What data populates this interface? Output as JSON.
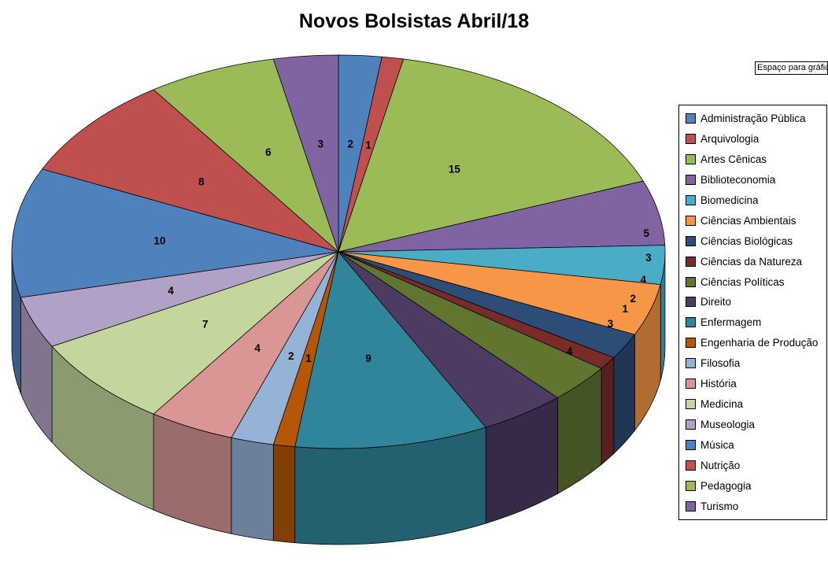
{
  "title": "Novos Bolsistas Abril/18",
  "textbox": {
    "text": "Espaço para gráfic"
  },
  "chart_data": {
    "type": "pie",
    "style": "3d",
    "title": "Novos Bolsistas Abril/18",
    "legend_position": "right",
    "data_labels": "value",
    "start_angle_deg": -90,
    "direction": "clockwise",
    "total": 94,
    "categories": [
      "Administração Pública",
      "Arquivologia",
      "Artes Cênicas",
      "Biblioteconomia",
      "Biomedicina",
      "Ciências Ambientais",
      "Ciências Biológicas",
      "Ciências da Natureza",
      "Ciências Políticas",
      "Direito",
      "Enfermagem",
      "Engenharia de Produção",
      "Filosofia",
      "História",
      "Medicina",
      "Museologia",
      "Música",
      "Nutrição",
      "Pedagogia",
      "Turismo"
    ],
    "values": [
      2,
      1,
      15,
      5,
      3,
      4,
      2,
      1,
      3,
      4,
      9,
      1,
      2,
      4,
      7,
      4,
      10,
      8,
      6,
      3
    ],
    "colors": [
      "#4F81BD",
      "#C0504D",
      "#9BBB59",
      "#8064A2",
      "#4BACC6",
      "#F79646",
      "#2C4D75",
      "#772C2A",
      "#5F7530",
      "#4D3B62",
      "#31859B",
      "#B65708",
      "#95B3D7",
      "#D99694",
      "#C3D69B",
      "#B2A1C7",
      "#4F81BD",
      "#C0504D",
      "#9BBB59",
      "#8064A2"
    ]
  }
}
